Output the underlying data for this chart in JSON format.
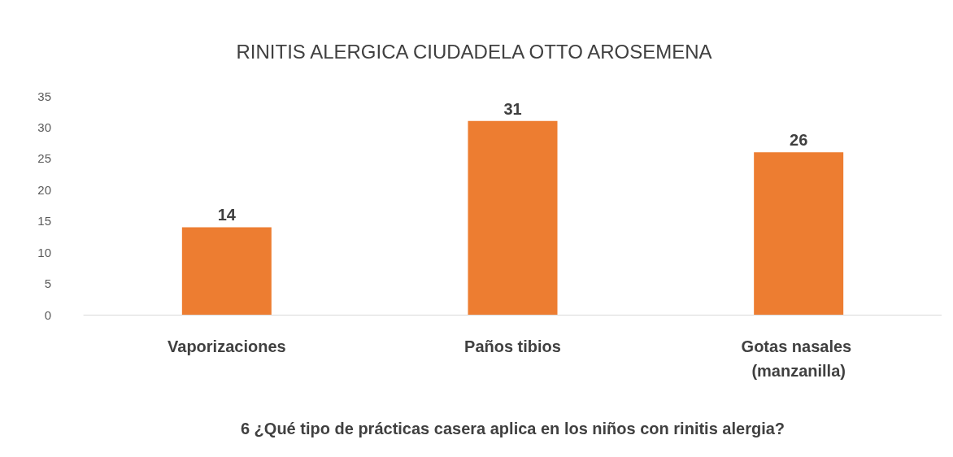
{
  "chart_data": {
    "type": "bar",
    "title": "RINITIS ALERGICA CIUDADELA OTTO AROSEMENA",
    "xlabel": "6 ¿Qué tipo de prácticas casera aplica en los niños con rinitis alergia?",
    "categories": [
      "Vaporizaciones",
      "Paños tibios",
      "Gotas nasales (manzanilla)"
    ],
    "values": [
      14,
      31,
      26
    ],
    "color": "#ed7d31",
    "ylim": [
      0,
      35
    ],
    "yticks": [
      0,
      5,
      10,
      15,
      20,
      25,
      30,
      35
    ],
    "grid": false,
    "data_labels": true
  }
}
